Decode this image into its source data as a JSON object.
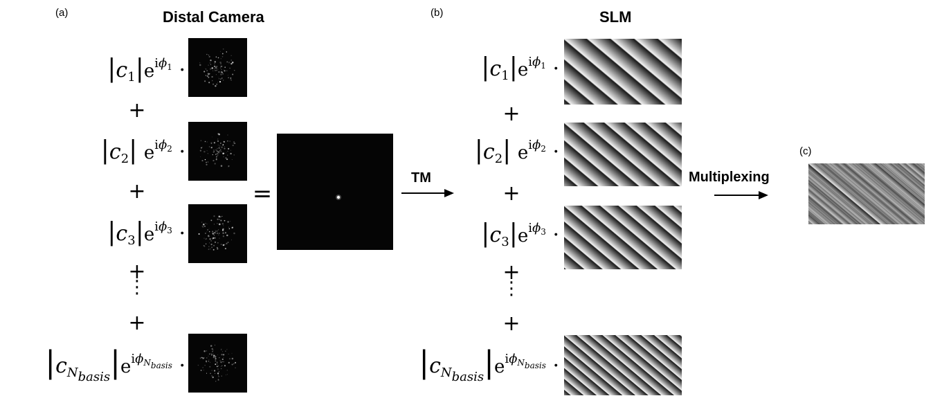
{
  "labels": {
    "panel_a": "(a)",
    "panel_b": "(b)",
    "panel_c": "(c)",
    "distal_camera": "Distal Camera",
    "slm": "SLM",
    "tm": "TM",
    "multiplexing": "Multiplexing"
  },
  "operators": {
    "plus": "+",
    "equals": "=",
    "dot": "·",
    "bar": "|",
    "exp": "e",
    "imag": "i",
    "vdots": "⋮"
  },
  "terms": [
    {
      "c": "c",
      "c_sub": "1",
      "phi": "ϕ",
      "phi_sub": "1"
    },
    {
      "c": "c",
      "c_sub": "2",
      "phi": "ϕ",
      "phi_sub": "2"
    },
    {
      "c": "c",
      "c_sub": "3",
      "phi": "ϕ",
      "phi_sub": "3"
    },
    {
      "c": "c",
      "c_sub": "N",
      "c_subsub": "basis",
      "phi": "ϕ",
      "phi_sub": "N",
      "phi_subsub": "basis"
    }
  ],
  "colors": {
    "speckle_bg": "#050505",
    "grating_light": "#f2f2f2",
    "grating_dark": "#1a1a1a"
  },
  "icons": {
    "arrow": "right-arrow-icon"
  }
}
